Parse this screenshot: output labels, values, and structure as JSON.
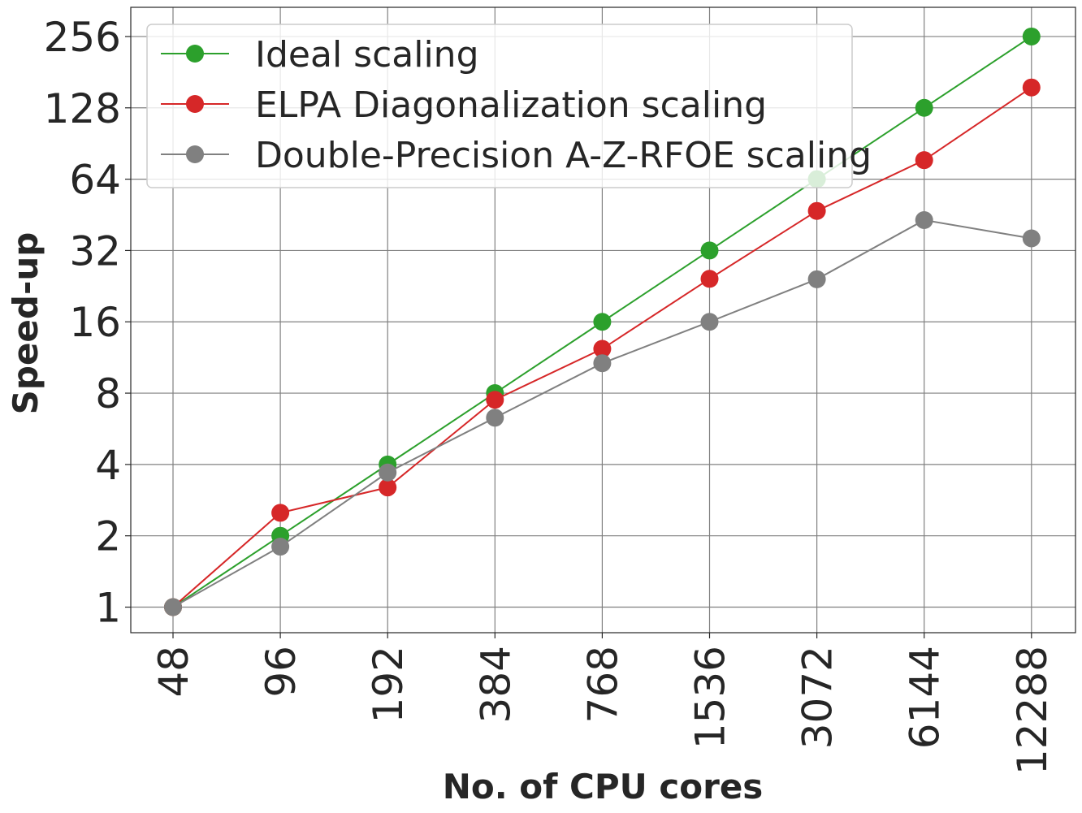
{
  "chart_data": {
    "type": "line",
    "title": "",
    "xlabel": "No. of CPU cores",
    "ylabel": "Speed-up",
    "categories": [
      "48",
      "96",
      "192",
      "384",
      "768",
      "1536",
      "3072",
      "6144",
      "12288"
    ],
    "y_scale": "log2",
    "yticks": [
      1,
      2,
      4,
      8,
      16,
      32,
      64,
      128,
      256
    ],
    "ylim": [
      0.78,
      340
    ],
    "grid": true,
    "legend_position": "top-left",
    "series": [
      {
        "name": "Ideal scaling",
        "color": "#2ca02c",
        "values": [
          1,
          2,
          4,
          8,
          16,
          32,
          64,
          128,
          256
        ]
      },
      {
        "name": "ELPA Diagonalization scaling",
        "color": "#d62728",
        "values": [
          1,
          2.5,
          3.2,
          7.5,
          12.3,
          24.3,
          47,
          77,
          156
        ]
      },
      {
        "name": "Double-Precision A-Z-RFOE scaling",
        "color": "#808080",
        "values": [
          1,
          1.8,
          3.7,
          6.3,
          10.7,
          16,
          24.2,
          43,
          36
        ]
      }
    ]
  }
}
